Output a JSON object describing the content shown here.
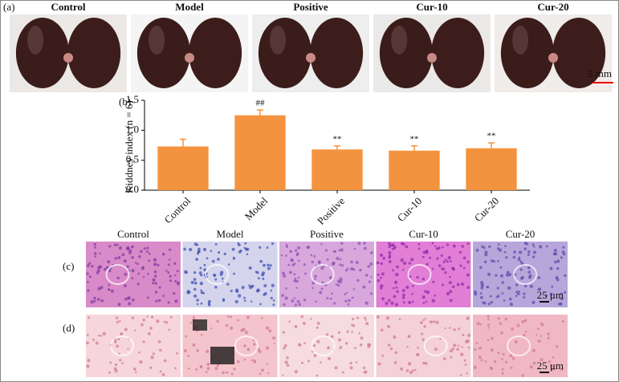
{
  "panel_a": {
    "label": "(a)",
    "groups": [
      "Control",
      "Model",
      "Positive",
      "Cur-10",
      "Cur-20"
    ],
    "scale_bar": "5 mm"
  },
  "chart_data": {
    "type": "bar",
    "label": "(b)",
    "y_label": "Kiddney index (n = 6)",
    "categories": [
      "Control",
      "Model",
      "Positive",
      "Cur-10",
      "Cur-20"
    ],
    "values": [
      0.73,
      1.25,
      0.68,
      0.66,
      0.7
    ],
    "errors": [
      0.12,
      0.09,
      0.06,
      0.08,
      0.09
    ],
    "significance": [
      null,
      "##",
      "**",
      "**",
      "**"
    ],
    "color": "#f4933f",
    "ylim": [
      0,
      1.5
    ],
    "yticks": [
      {
        "value": 0,
        "label": "0.0"
      },
      {
        "value": 0.5,
        "label": "0.5"
      },
      {
        "value": 1,
        "label": "1.0"
      },
      {
        "value": 1.5,
        "label": "1.5"
      }
    ]
  },
  "panel_c": {
    "label": "(c)",
    "groups": [
      "Control",
      "Model",
      "Positive",
      "Cur-10",
      "Cur-20"
    ],
    "scale_bar": "25 μm"
  },
  "panel_d": {
    "label": "(d)",
    "scale_bar": "25 μm"
  }
}
